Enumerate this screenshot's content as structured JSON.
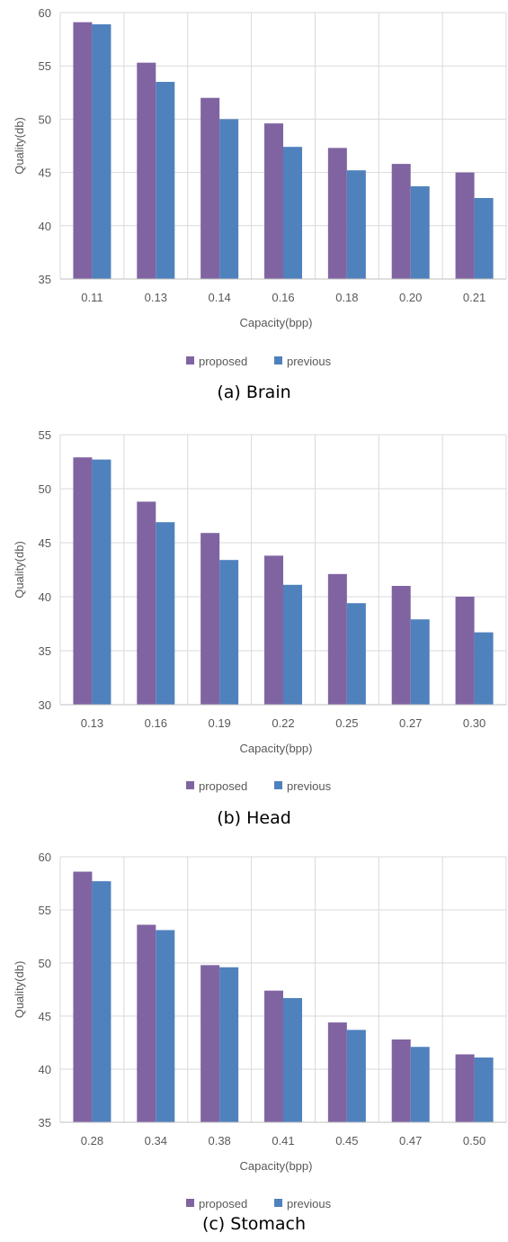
{
  "colors": {
    "proposed": "#8064a2",
    "previous": "#4f81bd",
    "grid": "#d9d9d9",
    "axis": "#bfbfbf"
  },
  "chart_data": [
    {
      "type": "bar",
      "caption": "(a) Brain",
      "xlabel": "Capacity(bpp)",
      "ylabel": "Quality(db)",
      "ylim": [
        35,
        60
      ],
      "yticks": [
        "35",
        "40",
        "45",
        "50",
        "55",
        "60"
      ],
      "grid": true,
      "legend_position": "bottom",
      "categories": [
        "0.11",
        "0.13",
        "0.14",
        "0.16",
        "0.18",
        "0.20",
        "0.21"
      ],
      "series": [
        {
          "name": "proposed",
          "values": [
            59.1,
            55.3,
            52.0,
            49.6,
            47.3,
            45.8,
            45.0
          ]
        },
        {
          "name": "previous",
          "values": [
            58.9,
            53.5,
            50.0,
            47.4,
            45.2,
            43.7,
            42.6
          ]
        }
      ]
    },
    {
      "type": "bar",
      "caption": "(b) Head",
      "xlabel": "Capacity(bpp)",
      "ylabel": "Quality(db)",
      "ylim": [
        30,
        55
      ],
      "yticks": [
        "30",
        "35",
        "40",
        "45",
        "50",
        "55"
      ],
      "grid": true,
      "legend_position": "bottom",
      "categories": [
        "0.13",
        "0.16",
        "0.19",
        "0.22",
        "0.25",
        "0.27",
        "0.30"
      ],
      "series": [
        {
          "name": "proposed",
          "values": [
            52.9,
            48.8,
            45.9,
            43.8,
            42.1,
            41.0,
            40.0
          ]
        },
        {
          "name": "previous",
          "values": [
            52.7,
            46.9,
            43.4,
            41.1,
            39.4,
            37.9,
            36.7
          ]
        }
      ]
    },
    {
      "type": "bar",
      "caption": "(c) Stomach",
      "xlabel": "Capacity(bpp)",
      "ylabel": "Quality(db)",
      "ylim": [
        35,
        60
      ],
      "yticks": [
        "35",
        "40",
        "45",
        "50",
        "55",
        "60"
      ],
      "grid": true,
      "legend_position": "bottom",
      "categories": [
        "0.28",
        "0.34",
        "0.38",
        "0.41",
        "0.45",
        "0.47",
        "0.50"
      ],
      "series": [
        {
          "name": "proposed",
          "values": [
            58.6,
            53.6,
            49.8,
            47.4,
            44.4,
            42.8,
            41.4
          ]
        },
        {
          "name": "previous",
          "values": [
            57.7,
            53.1,
            49.6,
            46.7,
            43.7,
            42.1,
            41.1
          ]
        }
      ]
    }
  ]
}
